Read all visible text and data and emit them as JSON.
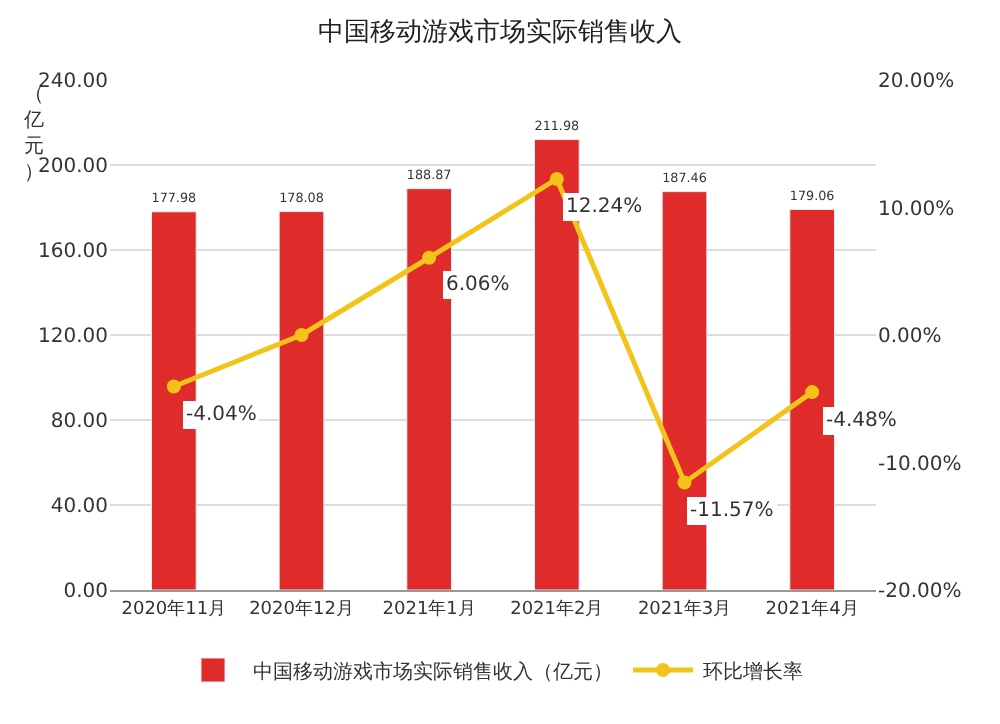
{
  "chart_data": {
    "type": "bar",
    "title": "中国移动游戏市场实际销售收入",
    "ylabel": "（亿元）",
    "categories": [
      "2020年11月",
      "2020年12月",
      "2021年1月",
      "2021年2月",
      "2021年3月",
      "2021年4月"
    ],
    "series": [
      {
        "name": "中国移动游戏市场实际销售收入（亿元）",
        "color": "#e02b2b",
        "values": [
          177.98,
          178.08,
          188.87,
          211.98,
          187.46,
          179.06
        ],
        "value_labels": [
          "177.98",
          "178.08",
          "188.87",
          "211.98",
          "187.46",
          "179.06"
        ]
      },
      {
        "name": "环比增长率",
        "type": "line",
        "axis": "y2",
        "color": "#f2c318",
        "values": [
          -4.04,
          0,
          6.06,
          12.24,
          -11.57,
          -4.48
        ],
        "value_labels": [
          "-4.04%",
          null,
          "6.06%",
          "12.24%",
          "-11.57%",
          "-4.48%"
        ]
      }
    ],
    "ylim": [
      0,
      240
    ],
    "yticks": [
      {
        "value": 0,
        "label": "0.00"
      },
      {
        "value": 40,
        "label": "40.00"
      },
      {
        "value": 80,
        "label": "80.00"
      },
      {
        "value": 120,
        "label": "120.00"
      },
      {
        "value": 160,
        "label": "160.00"
      },
      {
        "value": 200,
        "label": "200.00"
      },
      {
        "value": 240,
        "label": "240.00"
      }
    ],
    "y2lim": [
      -20,
      20
    ],
    "y2ticks": [
      {
        "value": -20,
        "label": "-20.00%"
      },
      {
        "value": -10,
        "label": "-10.00%"
      },
      {
        "value": 0,
        "label": "0.00%"
      },
      {
        "value": 10,
        "label": "10.00%"
      },
      {
        "value": 20,
        "label": "20.00%"
      }
    ],
    "grid": "y",
    "legend": "bottom",
    "marker": "circle",
    "line_style": "solid"
  }
}
